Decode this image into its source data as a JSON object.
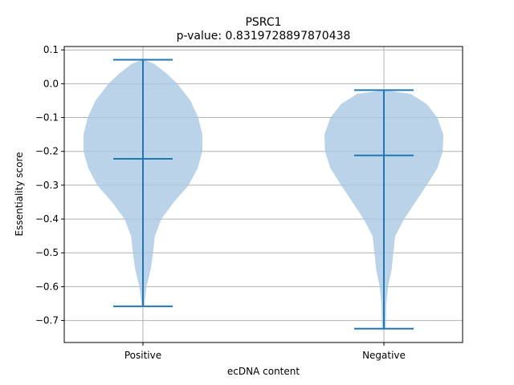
{
  "chart_data": {
    "type": "violin",
    "title": "PSRC1",
    "subtitle": "p-value: 0.8319728897870438",
    "xlabel": "ecDNA content",
    "ylabel": "Essentiality score",
    "ylim": [
      -0.765,
      0.11
    ],
    "yticks": [
      0.1,
      0.0,
      -0.1,
      -0.2,
      -0.3,
      -0.4,
      -0.5,
      -0.6,
      -0.7
    ],
    "ytick_labels": [
      "0.1",
      "0.0",
      "−0.1",
      "−0.2",
      "−0.3",
      "−0.4",
      "−0.5",
      "−0.6",
      "−0.7"
    ],
    "categories": [
      "Positive",
      "Negative"
    ],
    "grid": true,
    "colors": {
      "body": "#a9c8e2",
      "line": "#1f77b4",
      "grid": "#b0b0b0"
    },
    "series": [
      {
        "category": "Positive",
        "max": 0.071,
        "median": -0.222,
        "min": -0.658,
        "density": [
          [
            0.071,
            0.0
          ],
          [
            0.06,
            0.18
          ],
          [
            0.03,
            0.4
          ],
          [
            0.0,
            0.58
          ],
          [
            -0.05,
            0.8
          ],
          [
            -0.1,
            0.93
          ],
          [
            -0.15,
            1.0
          ],
          [
            -0.2,
            1.0
          ],
          [
            -0.25,
            0.92
          ],
          [
            -0.3,
            0.77
          ],
          [
            -0.35,
            0.52
          ],
          [
            -0.4,
            0.31
          ],
          [
            -0.45,
            0.2
          ],
          [
            -0.5,
            0.17
          ],
          [
            -0.55,
            0.13
          ],
          [
            -0.6,
            0.06
          ],
          [
            -0.658,
            0.02
          ]
        ]
      },
      {
        "category": "Negative",
        "max": -0.019,
        "median": -0.212,
        "min": -0.724,
        "density": [
          [
            -0.019,
            0.0
          ],
          [
            -0.03,
            0.45
          ],
          [
            -0.06,
            0.72
          ],
          [
            -0.1,
            0.9
          ],
          [
            -0.15,
            1.0
          ],
          [
            -0.2,
            0.99
          ],
          [
            -0.25,
            0.9
          ],
          [
            -0.3,
            0.72
          ],
          [
            -0.35,
            0.53
          ],
          [
            -0.4,
            0.34
          ],
          [
            -0.45,
            0.19
          ],
          [
            -0.5,
            0.16
          ],
          [
            -0.55,
            0.13
          ],
          [
            -0.6,
            0.07
          ],
          [
            -0.65,
            0.04
          ],
          [
            -0.7,
            0.035
          ],
          [
            -0.724,
            0.03
          ]
        ]
      }
    ]
  }
}
